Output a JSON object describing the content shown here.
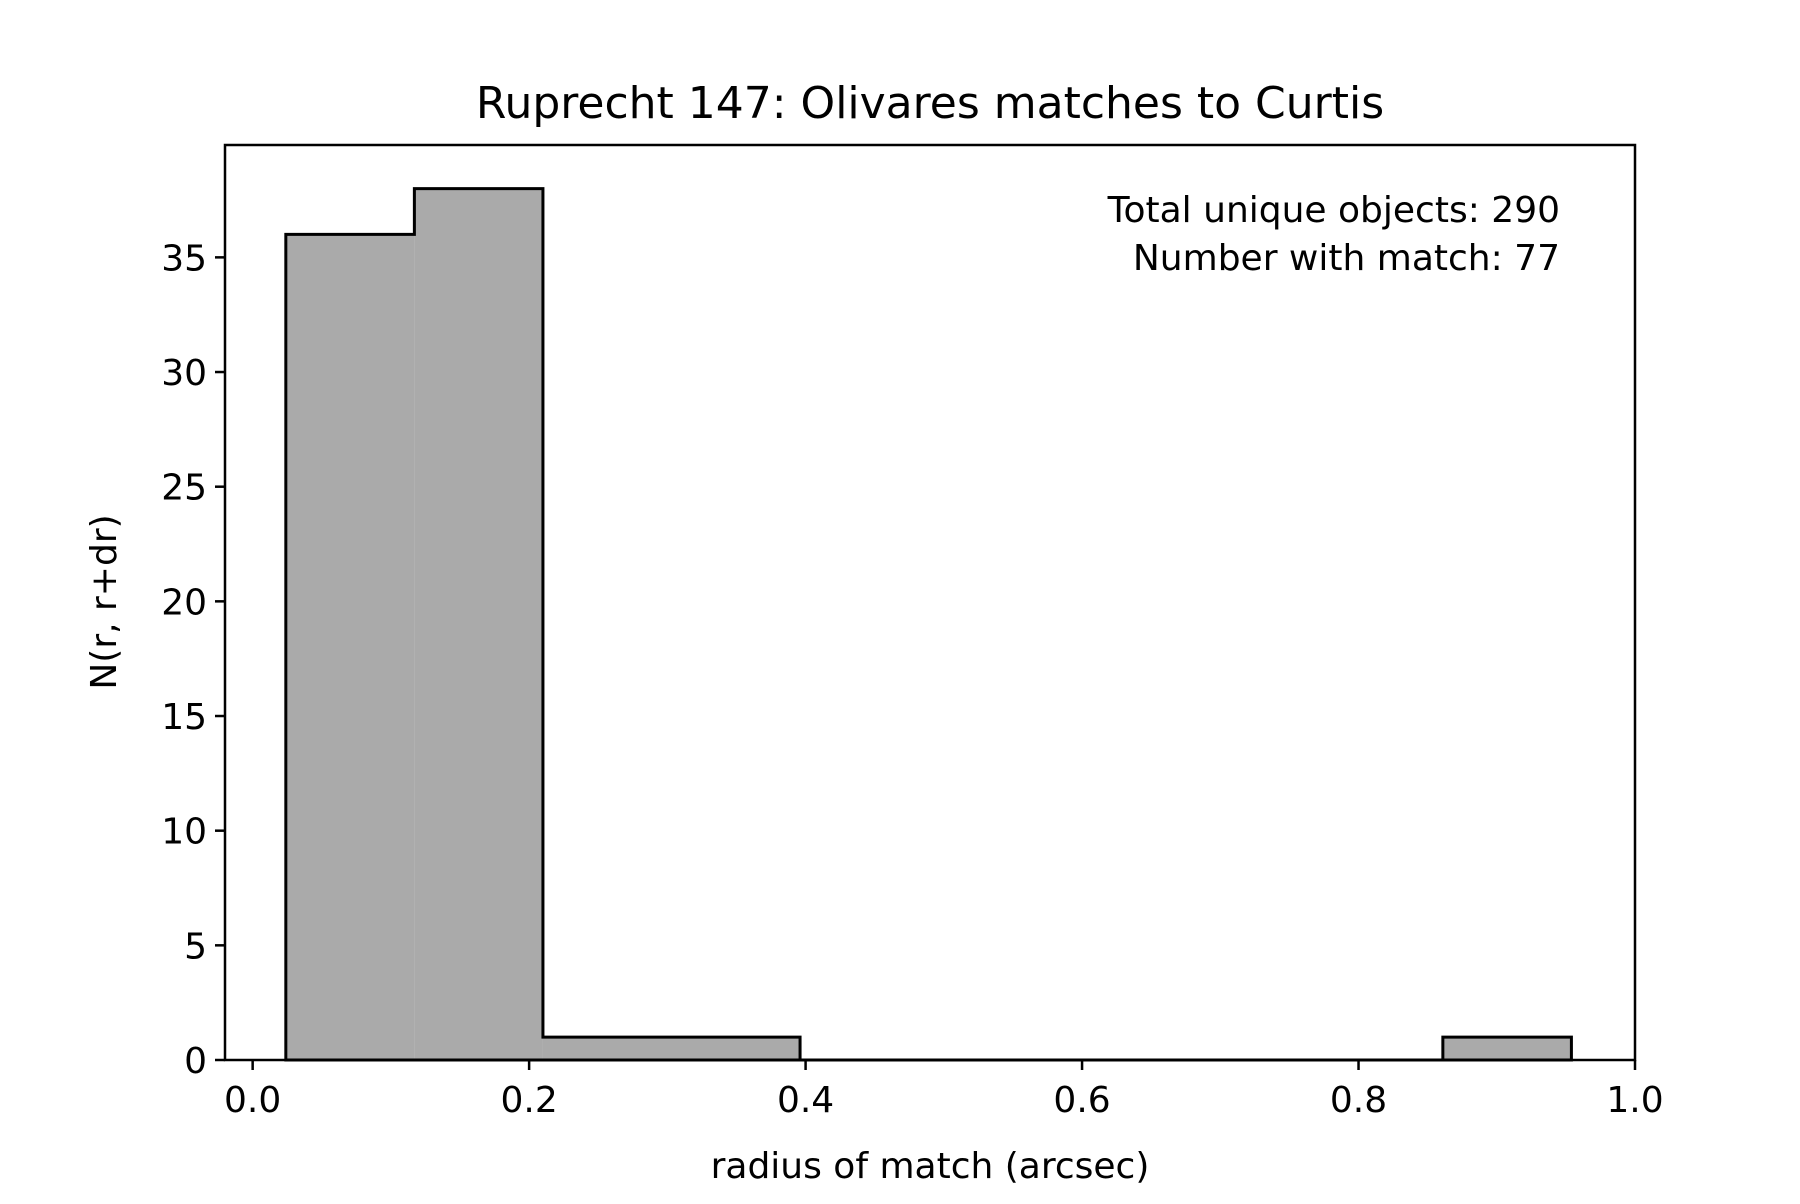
{
  "chart_data": {
    "type": "bar",
    "histogram": true,
    "title": "Ruprecht 147: Olivares matches to Curtis",
    "xlabel": "radius of match (arcsec)",
    "ylabel": "N(r, r+dr)",
    "xlim": [
      -0.02,
      1.0
    ],
    "ylim": [
      0,
      39.9
    ],
    "xticks": [
      0.0,
      0.2,
      0.4,
      0.6,
      0.8,
      1.0
    ],
    "xtick_labels": [
      "0.0",
      "0.2",
      "0.4",
      "0.6",
      "0.8",
      "1.0"
    ],
    "yticks": [
      0,
      5,
      10,
      15,
      20,
      25,
      30,
      35
    ],
    "ytick_labels": [
      "0",
      "5",
      "10",
      "15",
      "20",
      "25",
      "30",
      "35"
    ],
    "bins": [
      {
        "left": 0.024,
        "right": 0.117,
        "count": 36
      },
      {
        "left": 0.117,
        "right": 0.21,
        "count": 38
      },
      {
        "left": 0.21,
        "right": 0.303,
        "count": 1
      },
      {
        "left": 0.303,
        "right": 0.396,
        "count": 1
      },
      {
        "left": 0.396,
        "right": 0.489,
        "count": 0
      },
      {
        "left": 0.489,
        "right": 0.582,
        "count": 0
      },
      {
        "left": 0.582,
        "right": 0.675,
        "count": 0
      },
      {
        "left": 0.675,
        "right": 0.768,
        "count": 0
      },
      {
        "left": 0.768,
        "right": 0.861,
        "count": 0
      },
      {
        "left": 0.861,
        "right": 0.954,
        "count": 1
      }
    ],
    "annotations": [
      "Total unique objects: 290",
      "Number with match: 77"
    ],
    "grid": false,
    "colors": {
      "fill": "#aaaaaa",
      "edge": "#000000"
    }
  }
}
